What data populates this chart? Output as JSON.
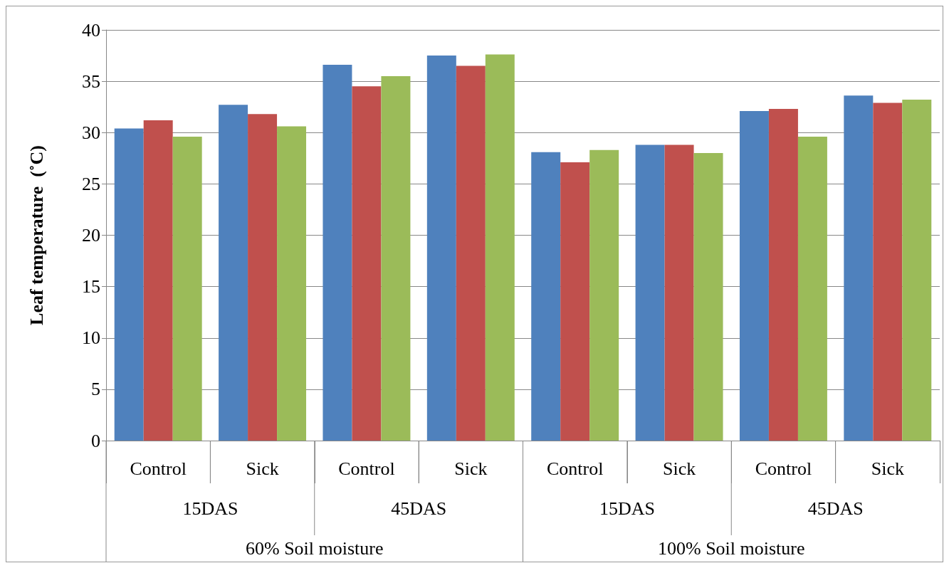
{
  "chart_data": {
    "type": "bar",
    "ylabel": "Leaf temperature  (˚C)",
    "categories": [
      "Control",
      "Sick",
      "Control",
      "Sick",
      "Control",
      "Sick",
      "Control",
      "Sick"
    ],
    "series": [
      {
        "color": "#4f81bd",
        "values": [
          30.4,
          32.7,
          36.6,
          37.5,
          28.1,
          28.8,
          32.1,
          33.6
        ]
      },
      {
        "color": "#c0504d",
        "values": [
          31.2,
          31.8,
          34.5,
          36.5,
          27.1,
          28.8,
          32.3,
          32.9
        ]
      },
      {
        "color": "#9bbb59",
        "values": [
          29.6,
          30.6,
          35.5,
          37.6,
          28.3,
          28.0,
          29.6,
          33.2
        ]
      }
    ],
    "annotations": [
      "15DAS",
      "45DAS",
      "15DAS",
      "45DAS",
      "60% Soil moisture",
      "100% Soil moisture"
    ],
    "ylim": [
      0,
      40
    ],
    "yticks": [
      0,
      5,
      10,
      15,
      20,
      25,
      30,
      35,
      40
    ],
    "grid": "y"
  }
}
